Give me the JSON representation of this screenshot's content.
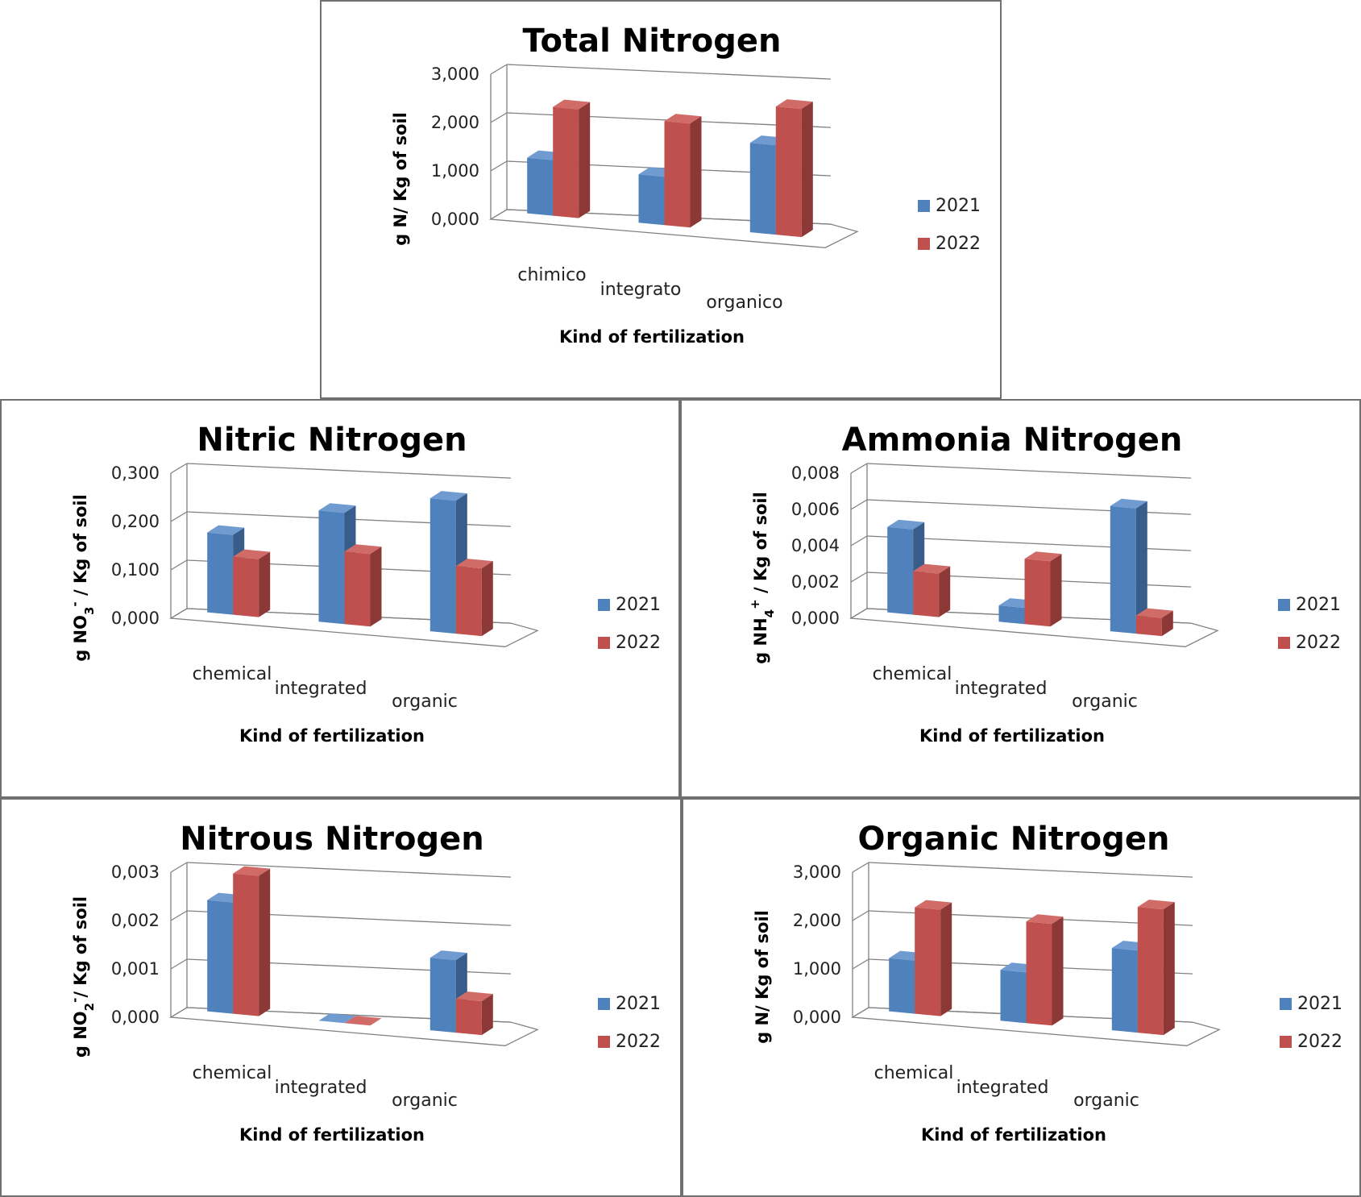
{
  "chart_data": [
    {
      "id": "total",
      "type": "bar",
      "title": "Total Nitrogen",
      "xlabel": "Kind of fertilization",
      "ylabel_parts": [
        {
          "t": "g N/ Kg of soil"
        }
      ],
      "categories": [
        "chimico",
        "integrato",
        "organico"
      ],
      "yticks": [
        "0,000",
        "1,000",
        "2,000",
        "3,000"
      ],
      "ylim": [
        0,
        3
      ],
      "legend_position": "right",
      "grid": true,
      "series": [
        {
          "name": "2021",
          "values": [
            1.15,
            1.0,
            1.85
          ]
        },
        {
          "name": "2022",
          "values": [
            2.25,
            2.15,
            2.65
          ]
        }
      ]
    },
    {
      "id": "nitric",
      "type": "bar",
      "title": "Nitric Nitrogen",
      "xlabel": "Kind of fertilization",
      "ylabel_parts": [
        {
          "t": "g NO"
        },
        {
          "t": "3",
          "sub": true
        },
        {
          "t": "-",
          "sup": true
        },
        {
          "t": " / Kg of soil"
        }
      ],
      "categories": [
        "chemical",
        "integrated",
        "organic"
      ],
      "yticks": [
        "0,000",
        "0,100",
        "0,200",
        "0,300"
      ],
      "ylim": [
        0,
        0.3
      ],
      "legend_position": "right",
      "grid": true,
      "series": [
        {
          "name": "2021",
          "values": [
            0.165,
            0.23,
            0.275
          ]
        },
        {
          "name": "2022",
          "values": [
            0.12,
            0.15,
            0.14
          ]
        }
      ]
    },
    {
      "id": "ammonia",
      "type": "bar",
      "title": "Ammonia Nitrogen",
      "xlabel": "Kind of fertilization",
      "ylabel_parts": [
        {
          "t": "g NH"
        },
        {
          "t": "4",
          "sub": true
        },
        {
          "t": "+",
          "sup": true
        },
        {
          "t": " / Kg of soil"
        }
      ],
      "categories": [
        "chemical",
        "integrated",
        "organic"
      ],
      "yticks": [
        "0,000",
        "0,002",
        "0,004",
        "0,006",
        "0,008"
      ],
      "ylim": [
        0,
        0.008
      ],
      "legend_position": "right",
      "grid": true,
      "series": [
        {
          "name": "2021",
          "values": [
            0.0047,
            0.0009,
            0.0069
          ]
        },
        {
          "name": "2022",
          "values": [
            0.0024,
            0.0036,
            0.001
          ]
        }
      ]
    },
    {
      "id": "nitrous",
      "type": "bar",
      "title": "Nitrous Nitrogen",
      "xlabel": "Kind of fertilization",
      "ylabel_parts": [
        {
          "t": "g NO"
        },
        {
          "t": "2",
          "sub": true
        },
        {
          "t": "-",
          "sup": true
        },
        {
          "t": "/ Kg of soil"
        }
      ],
      "categories": [
        "chemical",
        "integrated",
        "organic"
      ],
      "yticks": [
        "0,000",
        "0,001",
        "0,002",
        "0,003"
      ],
      "ylim": [
        0,
        0.003
      ],
      "legend_position": "right",
      "grid": true,
      "series": [
        {
          "name": "2021",
          "values": [
            0.0023,
            0.0,
            0.0015
          ]
        },
        {
          "name": "2022",
          "values": [
            0.0029,
            0.0,
            0.0007
          ]
        }
      ]
    },
    {
      "id": "organic",
      "type": "bar",
      "title": "Organic Nitrogen",
      "xlabel": "Kind of fertilization",
      "ylabel_parts": [
        {
          "t": "g N/ Kg of soil"
        }
      ],
      "categories": [
        "chemical",
        "integrated",
        "organic"
      ],
      "yticks": [
        "0,000",
        "1,000",
        "2,000",
        "3,000"
      ],
      "ylim": [
        0,
        3
      ],
      "legend_position": "right",
      "grid": true,
      "series": [
        {
          "name": "2021",
          "values": [
            1.1,
            1.05,
            1.7
          ]
        },
        {
          "name": "2022",
          "values": [
            2.2,
            2.1,
            2.6
          ]
        }
      ]
    }
  ],
  "colors": {
    "2021_front": "#4f81bd",
    "2021_top": "#6f9bd1",
    "2021_side": "#385d8a",
    "2022_front": "#c0504d",
    "2022_top": "#d06b68",
    "2022_side": "#8c3836"
  }
}
